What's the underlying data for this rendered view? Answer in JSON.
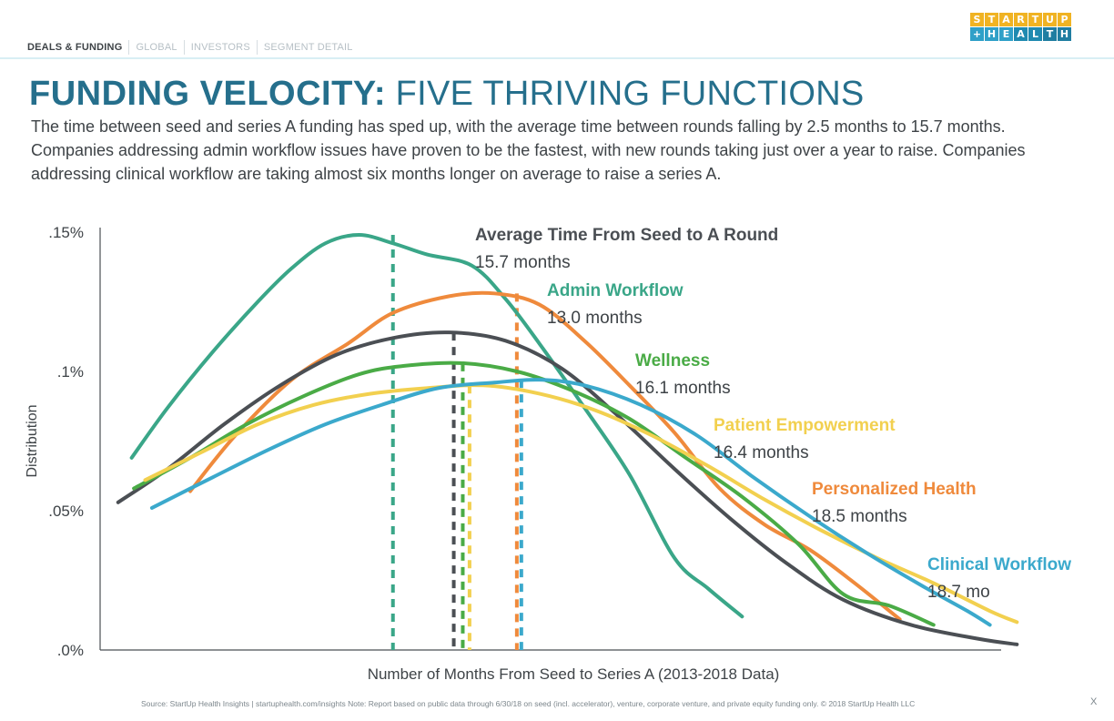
{
  "nav": {
    "tabs": [
      "DEALS & FUNDING",
      "GLOBAL",
      "INVESTORS",
      "SEGMENT DETAIL"
    ]
  },
  "logo": {
    "row1": [
      "S",
      "T",
      "A",
      "R",
      "T",
      "U",
      "P"
    ],
    "row2": [
      "+",
      "H",
      "E",
      "A",
      "L",
      "T",
      "H"
    ],
    "row1_colors": [
      "#f0b323",
      "#f0b323",
      "#f0b323",
      "#f0b323",
      "#f0b323",
      "#f0b323",
      "#f0b323"
    ],
    "row2_colors": [
      "#2fa0c8",
      "#2fa0c8",
      "#2fa0c8",
      "#1f8ab0",
      "#1f8ab0",
      "#1f7da1",
      "#1f7da1"
    ]
  },
  "title": {
    "bold": "FUNDING VELOCITY:",
    "light": "FIVE THRIVING FUNCTIONS"
  },
  "subtitle": "The time between seed and series A funding has sped up, with the average time between rounds falling by 2.5 months to 15.7 months. Companies addressing admin workflow issues have proven to be the fastest, with new rounds taking just over a year to raise. Companies addressing clinical workflow are taking almost six months longer on average to raise a series A.",
  "footer": "Source: StartUp Health Insights | startuphealth.com/insights  Note: Report based on public data through 6/30/18 on seed (incl. accelerator), venture, corporate venture, and private equity funding only. © 2018 StartUp Health LLC",
  "page_number": "X",
  "chart_data": {
    "type": "line",
    "xlabel": "Number of Months From Seed to Series A (2013-2018 Data)",
    "ylabel": "Distribution",
    "y_ticks": [
      ".0%",
      ".05%",
      ".1%",
      ".15%"
    ],
    "y_tick_values": [
      0,
      0.05,
      0.1,
      0.15
    ],
    "ylim": [
      0,
      0.15
    ],
    "xlim": [
      0,
      40
    ],
    "grid": false,
    "series": [
      {
        "name": "Admin Workflow",
        "label_value": "13.0 months",
        "color": "#3aa688",
        "mean": 13.0,
        "x": [
          1.4,
          3,
          5,
          7,
          8.5,
          10,
          11.5,
          13,
          14.5,
          16.5,
          18,
          19.5,
          21.5,
          23.5,
          25.5,
          27,
          28.5
        ],
        "y": [
          0.069,
          0.087,
          0.107,
          0.125,
          0.137,
          0.146,
          0.149,
          0.146,
          0.142,
          0.138,
          0.126,
          0.11,
          0.087,
          0.063,
          0.033,
          0.022,
          0.012
        ]
      },
      {
        "name": "Personalized Health",
        "label_value": "18.5 months",
        "color": "#ef8a3c",
        "mean": 18.5,
        "x": [
          4,
          6,
          8.5,
          11,
          13,
          15.5,
          17.5,
          19.5,
          21.5,
          23.5,
          25.5,
          27.5,
          29.5,
          31.5,
          33.5,
          35.5
        ],
        "y": [
          0.057,
          0.077,
          0.097,
          0.11,
          0.121,
          0.127,
          0.128,
          0.124,
          0.111,
          0.095,
          0.078,
          0.058,
          0.045,
          0.036,
          0.024,
          0.011
        ]
      },
      {
        "name": "Average Time From Seed to A Round",
        "label_value": "15.7 months",
        "color": "#4b4f54",
        "mean": 15.7,
        "x": [
          0.8,
          3,
          5.5,
          8,
          10.5,
          13,
          15.5,
          18,
          20.5,
          23,
          25.5,
          28,
          30.5,
          33,
          36,
          39,
          40.7
        ],
        "y": [
          0.053,
          0.065,
          0.081,
          0.095,
          0.106,
          0.112,
          0.114,
          0.111,
          0.101,
          0.084,
          0.065,
          0.047,
          0.031,
          0.018,
          0.009,
          0.004,
          0.002
        ]
      },
      {
        "name": "Wellness",
        "label_value": "16.1 months",
        "color": "#4aab46",
        "mean": 16.1,
        "x": [
          1.5,
          4,
          6.5,
          9,
          11.5,
          13.5,
          16,
          18.5,
          21,
          23.5,
          26,
          28.5,
          31,
          33,
          35,
          37
        ],
        "y": [
          0.058,
          0.069,
          0.081,
          0.091,
          0.099,
          0.102,
          0.103,
          0.1,
          0.093,
          0.083,
          0.069,
          0.055,
          0.038,
          0.02,
          0.016,
          0.009
        ]
      },
      {
        "name": "Patient Empowerment",
        "label_value": "16.4 months",
        "color": "#f2d04f",
        "mean": 16.4,
        "x": [
          2,
          4.5,
          7,
          9.5,
          12,
          14.5,
          17,
          19.5,
          22,
          24.5,
          27,
          29.5,
          32,
          34.5,
          37,
          39.5,
          40.7
        ],
        "y": [
          0.061,
          0.071,
          0.081,
          0.088,
          0.092,
          0.094,
          0.095,
          0.092,
          0.086,
          0.077,
          0.066,
          0.054,
          0.043,
          0.033,
          0.024,
          0.014,
          0.01
        ]
      },
      {
        "name": "Clinical Workflow",
        "label_value": "18.7 mo",
        "color": "#3ba9cc",
        "mean": 18.7,
        "x": [
          2.3,
          5,
          7.5,
          10,
          12.5,
          15,
          17.5,
          19.5,
          21.5,
          24,
          26.5,
          29,
          31.5,
          34,
          36.5,
          38.5,
          39.5
        ],
        "y": [
          0.051,
          0.062,
          0.072,
          0.081,
          0.088,
          0.094,
          0.096,
          0.097,
          0.095,
          0.088,
          0.077,
          0.062,
          0.048,
          0.035,
          0.023,
          0.014,
          0.009
        ]
      }
    ],
    "annotations": [
      {
        "name": "Average Time From Seed to A Round",
        "value": "15.7 months",
        "color": "#4b4f54"
      },
      {
        "name": "Admin Workflow",
        "value": "13.0 months",
        "color": "#3aa688"
      },
      {
        "name": "Wellness",
        "value": "16.1 months",
        "color": "#4aab46"
      },
      {
        "name": "Patient Empowerment",
        "value": "16.4 months",
        "color": "#f2d04f"
      },
      {
        "name": "Personalized Health",
        "value": "18.5 months",
        "color": "#ef8a3c"
      },
      {
        "name": "Clinical Workflow",
        "value": "18.7 mo",
        "color": "#3ba9cc"
      }
    ]
  }
}
